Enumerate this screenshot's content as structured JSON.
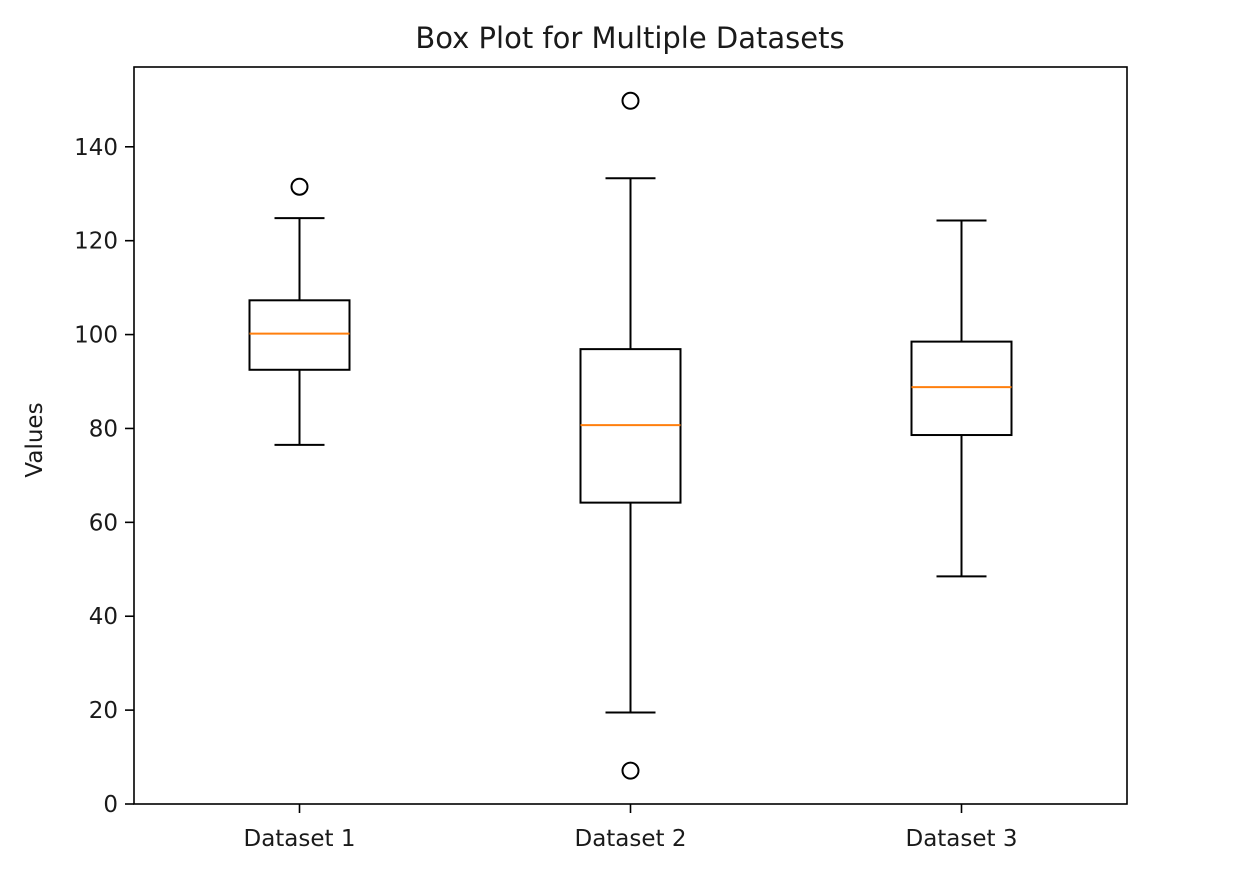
{
  "chart_data": {
    "type": "box",
    "title": "Box Plot for Multiple Datasets",
    "xlabel": "",
    "ylabel": "Values",
    "ylim": [
      0,
      157
    ],
    "yticks": [
      "0",
      "20",
      "40",
      "60",
      "80",
      "100",
      "120",
      "140"
    ],
    "grid": false,
    "legend": "none",
    "categories": [
      "Dataset 1",
      "Dataset 2",
      "Dataset 3"
    ],
    "boxes": [
      {
        "label": "Dataset 1",
        "whisker_low": 76.5,
        "q1": 92.5,
        "median": 100.2,
        "q3": 107.3,
        "whisker_high": 124.8,
        "outliers": [
          131.5
        ]
      },
      {
        "label": "Dataset 2",
        "whisker_low": 19.5,
        "q1": 64.2,
        "median": 80.7,
        "q3": 96.9,
        "whisker_high": 133.3,
        "outliers": [
          149.8,
          7.1
        ]
      },
      {
        "label": "Dataset 3",
        "whisker_low": 48.5,
        "q1": 78.6,
        "median": 88.8,
        "q3": 98.5,
        "whisker_high": 124.3,
        "outliers": []
      }
    ],
    "colors": {
      "box": "#000000",
      "median": "#ff7f0e",
      "axes": "#000000",
      "text": "#1a1a1a"
    }
  }
}
